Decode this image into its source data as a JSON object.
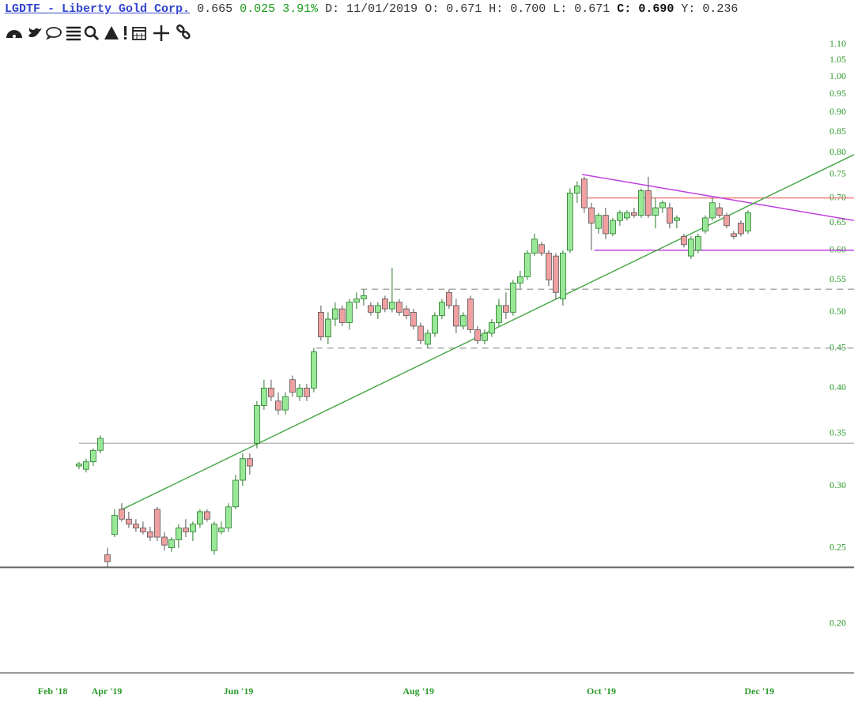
{
  "header": {
    "symbol": "LGDTF - Liberty Gold Corp.",
    "last": "0.665",
    "change": "0.025",
    "change_pct": "3.91%",
    "date": "D: 11/01/2019",
    "open": "O: 0.671",
    "high": "H: 0.700",
    "low": "L: 0.671",
    "close_label": "C:",
    "close": "0.690",
    "y": "Y: 0.236"
  },
  "chart_data": {
    "type": "candlestick",
    "log_scale": true,
    "up_color": "#98e898",
    "up_stroke": "#2a7a2a",
    "down_color": "#f0a0a0",
    "down_stroke": "#555555",
    "xlim": [
      -11.1,
      108.9
    ],
    "ylim": [
      0.173,
      1.142
    ],
    "xticks": [
      {
        "value": -3.7,
        "label": "Feb '18"
      },
      {
        "value": 3.9,
        "label": "Apr '19"
      },
      {
        "value": 22.4,
        "label": "Jun '19"
      },
      {
        "value": 47.7,
        "label": "Aug '19"
      },
      {
        "value": 73.4,
        "label": "Oct '19"
      },
      {
        "value": 95.6,
        "label": "Dec '19"
      }
    ],
    "yticks": [
      {
        "value": 0.2,
        "label": "0.20"
      },
      0.25,
      {
        "value": 0.3,
        "label": "0.30"
      },
      0.35,
      {
        "value": 0.4,
        "label": "0.40"
      },
      0.45,
      {
        "value": 0.5,
        "label": "0.50"
      },
      0.55,
      {
        "value": 0.6,
        "label": "0.60"
      },
      0.65,
      {
        "value": 0.7,
        "label": "0.70"
      },
      0.75,
      {
        "value": 0.8,
        "label": "0.80"
      },
      0.85,
      {
        "value": 0.9,
        "label": "0.90"
      },
      0.95,
      {
        "value": 1.0,
        "label": "1.00"
      },
      1.05,
      {
        "value": 1.1,
        "label": "1.10"
      }
    ],
    "ohlc": [
      [
        0.318,
        0.322,
        0.315,
        0.32
      ],
      [
        0.315,
        0.325,
        0.312,
        0.322
      ],
      [
        0.322,
        0.335,
        0.318,
        0.333
      ],
      [
        0.333,
        0.348,
        0.33,
        0.345
      ],
      [
        0.245,
        0.25,
        0.236,
        0.24
      ],
      [
        0.26,
        0.28,
        0.258,
        0.275
      ],
      [
        0.28,
        0.285,
        0.27,
        0.272
      ],
      [
        0.272,
        0.278,
        0.265,
        0.268
      ],
      [
        0.268,
        0.272,
        0.262,
        0.265
      ],
      [
        0.265,
        0.27,
        0.26,
        0.262
      ],
      [
        0.262,
        0.266,
        0.255,
        0.258
      ],
      [
        0.28,
        0.282,
        0.255,
        0.258
      ],
      [
        0.258,
        0.262,
        0.248,
        0.252
      ],
      [
        0.25,
        0.258,
        0.247,
        0.256
      ],
      [
        0.256,
        0.268,
        0.25,
        0.265
      ],
      [
        0.265,
        0.272,
        0.258,
        0.262
      ],
      [
        0.262,
        0.27,
        0.255,
        0.268
      ],
      [
        0.268,
        0.28,
        0.265,
        0.278
      ],
      [
        0.278,
        0.28,
        0.27,
        0.272
      ],
      [
        0.248,
        0.27,
        0.245,
        0.268
      ],
      [
        0.262,
        0.27,
        0.26,
        0.265
      ],
      [
        0.265,
        0.285,
        0.262,
        0.282
      ],
      [
        0.282,
        0.31,
        0.28,
        0.305
      ],
      [
        0.305,
        0.33,
        0.3,
        0.325
      ],
      [
        0.325,
        0.33,
        0.31,
        0.318
      ],
      [
        0.34,
        0.385,
        0.335,
        0.38
      ],
      [
        0.38,
        0.41,
        0.375,
        0.4
      ],
      [
        0.4,
        0.41,
        0.385,
        0.39
      ],
      [
        0.385,
        0.395,
        0.37,
        0.375
      ],
      [
        0.375,
        0.395,
        0.37,
        0.39
      ],
      [
        0.41,
        0.415,
        0.39,
        0.395
      ],
      [
        0.39,
        0.405,
        0.385,
        0.4
      ],
      [
        0.4,
        0.405,
        0.385,
        0.39
      ],
      [
        0.4,
        0.45,
        0.395,
        0.445
      ],
      [
        0.5,
        0.51,
        0.46,
        0.465
      ],
      [
        0.465,
        0.5,
        0.455,
        0.49
      ],
      [
        0.49,
        0.515,
        0.48,
        0.505
      ],
      [
        0.505,
        0.51,
        0.48,
        0.485
      ],
      [
        0.485,
        0.52,
        0.475,
        0.515
      ],
      [
        0.515,
        0.53,
        0.505,
        0.52
      ],
      [
        0.52,
        0.535,
        0.51,
        0.525
      ],
      [
        0.51,
        0.515,
        0.495,
        0.5
      ],
      [
        0.5,
        0.515,
        0.49,
        0.51
      ],
      [
        0.52,
        0.525,
        0.5,
        0.505
      ],
      [
        0.505,
        0.57,
        0.5,
        0.515
      ],
      [
        0.515,
        0.52,
        0.495,
        0.5
      ],
      [
        0.505,
        0.51,
        0.49,
        0.495
      ],
      [
        0.5,
        0.505,
        0.475,
        0.48
      ],
      [
        0.48,
        0.485,
        0.455,
        0.46
      ],
      [
        0.455,
        0.475,
        0.45,
        0.47
      ],
      [
        0.47,
        0.5,
        0.465,
        0.495
      ],
      [
        0.495,
        0.52,
        0.49,
        0.515
      ],
      [
        0.53,
        0.535,
        0.505,
        0.51
      ],
      [
        0.51,
        0.52,
        0.47,
        0.48
      ],
      [
        0.48,
        0.5,
        0.475,
        0.495
      ],
      [
        0.52,
        0.525,
        0.47,
        0.475
      ],
      [
        0.475,
        0.48,
        0.455,
        0.46
      ],
      [
        0.46,
        0.475,
        0.455,
        0.47
      ],
      [
        0.47,
        0.49,
        0.465,
        0.485
      ],
      [
        0.485,
        0.52,
        0.48,
        0.51
      ],
      [
        0.51,
        0.53,
        0.49,
        0.5
      ],
      [
        0.5,
        0.55,
        0.495,
        0.545
      ],
      [
        0.545,
        0.565,
        0.535,
        0.555
      ],
      [
        0.555,
        0.6,
        0.55,
        0.595
      ],
      [
        0.595,
        0.63,
        0.59,
        0.62
      ],
      [
        0.61,
        0.615,
        0.59,
        0.595
      ],
      [
        0.595,
        0.6,
        0.54,
        0.55
      ],
      [
        0.59,
        0.595,
        0.52,
        0.53
      ],
      [
        0.52,
        0.6,
        0.51,
        0.595
      ],
      [
        0.6,
        0.72,
        0.595,
        0.71
      ],
      [
        0.71,
        0.735,
        0.69,
        0.725
      ],
      [
        0.74,
        0.745,
        0.67,
        0.68
      ],
      [
        0.68,
        0.69,
        0.6,
        0.65
      ],
      [
        0.64,
        0.67,
        0.63,
        0.665
      ],
      [
        0.665,
        0.68,
        0.62,
        0.63
      ],
      [
        0.63,
        0.66,
        0.625,
        0.655
      ],
      [
        0.655,
        0.675,
        0.645,
        0.67
      ],
      [
        0.66,
        0.675,
        0.655,
        0.67
      ],
      [
        0.67,
        0.68,
        0.66,
        0.665
      ],
      [
        0.665,
        0.72,
        0.66,
        0.715
      ],
      [
        0.715,
        0.745,
        0.66,
        0.665
      ],
      [
        0.665,
        0.7,
        0.64,
        0.68
      ],
      [
        0.68,
        0.695,
        0.67,
        0.69
      ],
      [
        0.68,
        0.69,
        0.64,
        0.65
      ],
      [
        0.655,
        0.665,
        0.64,
        0.66
      ],
      [
        0.625,
        0.63,
        0.605,
        0.61
      ],
      [
        0.59,
        0.625,
        0.585,
        0.62
      ],
      [
        0.6,
        0.63,
        0.595,
        0.625
      ],
      [
        0.635,
        0.665,
        0.63,
        0.66
      ],
      [
        0.66,
        0.7,
        0.655,
        0.69
      ],
      [
        0.68,
        0.69,
        0.66,
        0.665
      ],
      [
        0.665,
        0.67,
        0.64,
        0.645
      ],
      [
        0.63,
        0.635,
        0.62,
        0.625
      ],
      [
        0.65,
        0.655,
        0.625,
        0.63
      ],
      [
        0.635,
        0.675,
        0.63,
        0.67
      ]
    ],
    "lines": [
      {
        "from": [
          -11.1,
          0.236
        ],
        "to": [
          108.9,
          0.236
        ],
        "color": "#666666",
        "width": 2,
        "dash": false
      },
      {
        "from": [
          0,
          0.34
        ],
        "to": [
          108.9,
          0.34
        ],
        "color": "#bbbbbb",
        "width": 1.5,
        "dash": false
      },
      {
        "from": [
          33.3,
          0.45
        ],
        "to": [
          108.9,
          0.45
        ],
        "color": "#aaaaaa",
        "width": 1.5,
        "dash": true
      },
      {
        "from": [
          39.6,
          0.535
        ],
        "to": [
          108.9,
          0.535
        ],
        "color": "#aaaaaa",
        "width": 1.5,
        "dash": true
      },
      {
        "from": [
          72.4,
          0.6
        ],
        "to": [
          108.9,
          0.6
        ],
        "color": "#c040e0",
        "width": 1.5,
        "dash": false
      },
      {
        "from": [
          71,
          0.7
        ],
        "to": [
          108.9,
          0.7
        ],
        "color": "#f08080",
        "width": 1.5,
        "dash": false
      },
      {
        "from": [
          70.7,
          0.75
        ],
        "to": [
          108.9,
          0.655
        ],
        "color": "#c040e0",
        "width": 1.5,
        "dash": false
      },
      {
        "from": [
          6.1,
          0.28
        ],
        "to": [
          108.9,
          0.795
        ],
        "color": "#4aa84a",
        "width": 1.5,
        "dash": false
      }
    ]
  }
}
